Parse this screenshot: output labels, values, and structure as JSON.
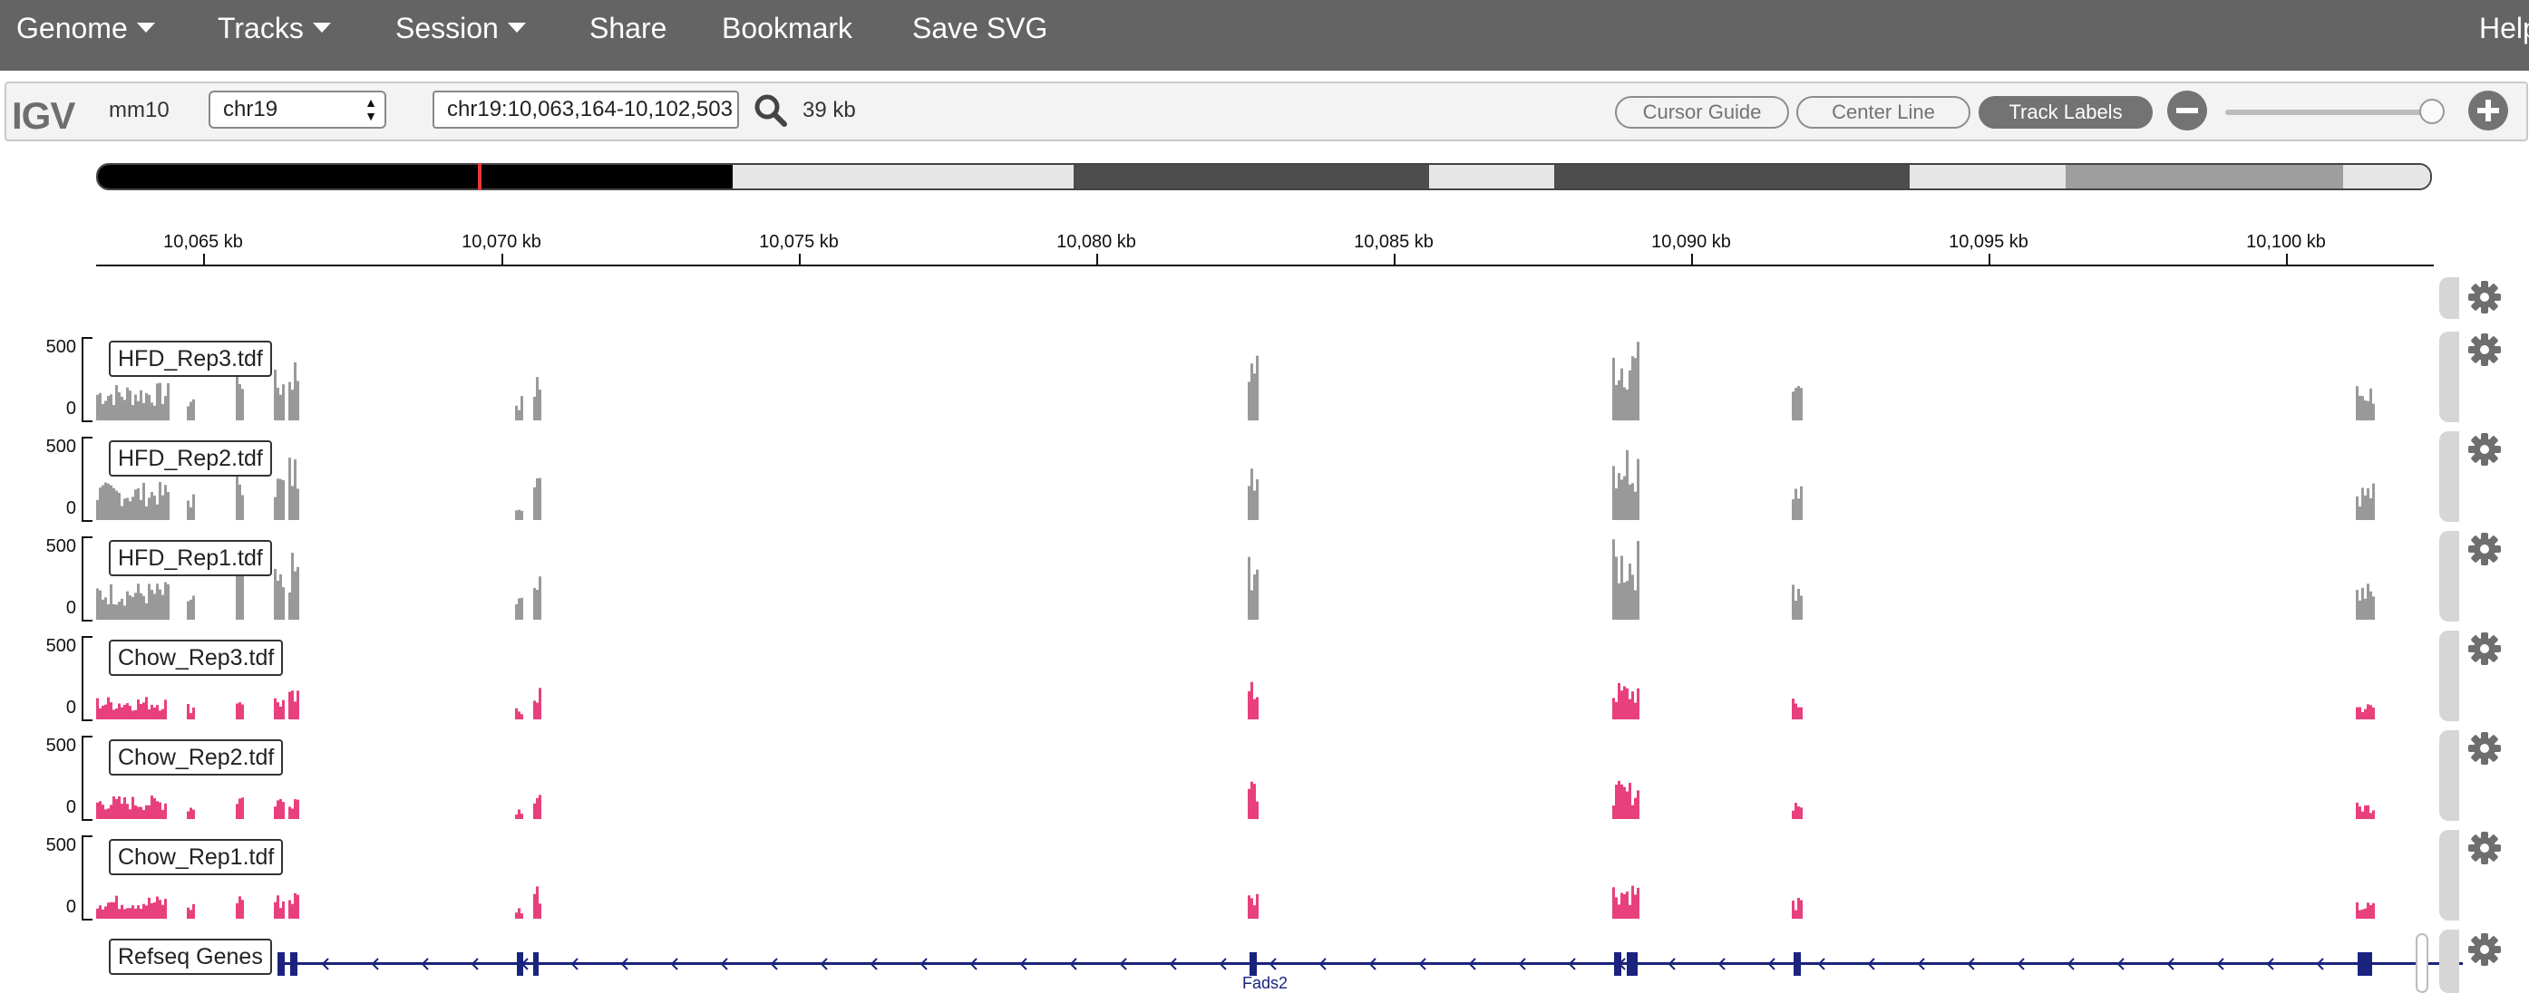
{
  "menubar": {
    "items": [
      {
        "label": "Genome",
        "dropdown": true
      },
      {
        "label": "Tracks",
        "dropdown": true
      },
      {
        "label": "Session",
        "dropdown": true
      },
      {
        "label": "Share",
        "dropdown": false
      },
      {
        "label": "Bookmark",
        "dropdown": false
      },
      {
        "label": "Save SVG",
        "dropdown": false
      }
    ],
    "help": "Help"
  },
  "navbar": {
    "logo": "IGV",
    "genome": "mm10",
    "chromosome": "chr19",
    "locus": "chr19:10,063,164-10,102,503",
    "window_size": "39 kb",
    "buttons": [
      {
        "label": "Cursor Guide",
        "active": false
      },
      {
        "label": "Center Line",
        "active": false
      },
      {
        "label": "Track Labels",
        "active": true
      }
    ],
    "zoom_level": 0.95
  },
  "ruler": {
    "ticks": [
      "10,065 kb",
      "10,070 kb",
      "10,075 kb",
      "10,080 kb",
      "10,085 kb",
      "10,090 kb",
      "10,095 kb",
      "10,100 kb"
    ]
  },
  "colors": {
    "hfd": "#999999",
    "chow": "#e8407c",
    "gene": "#1a237e",
    "menubar": "#646464"
  },
  "tracks": [
    {
      "name": "HFD_Rep3.tdf",
      "axis_max": "500",
      "axis_min": "0",
      "group": "hfd"
    },
    {
      "name": "HFD_Rep2.tdf",
      "axis_max": "500",
      "axis_min": "0",
      "group": "hfd"
    },
    {
      "name": "HFD_Rep1.tdf",
      "axis_max": "500",
      "axis_min": "0",
      "group": "hfd"
    },
    {
      "name": "Chow_Rep3.tdf",
      "axis_max": "500",
      "axis_min": "0",
      "group": "chow"
    },
    {
      "name": "Chow_Rep2.tdf",
      "axis_max": "500",
      "axis_min": "0",
      "group": "chow"
    },
    {
      "name": "Chow_Rep1.tdf",
      "axis_max": "500",
      "axis_min": "0",
      "group": "chow"
    }
  ],
  "gene_track": {
    "name": "Refseq Genes",
    "gene": "Fads2"
  },
  "icons": {
    "search": "search-icon",
    "zoom_out": "minus-circle-icon",
    "zoom_in": "plus-circle-icon",
    "settings": "gear-icon"
  }
}
